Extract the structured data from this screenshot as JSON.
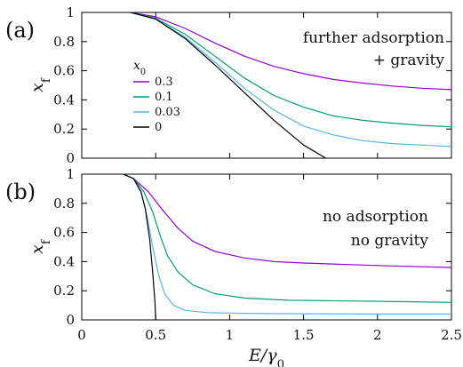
{
  "colors": {
    "x0_0.3": "#9400d3",
    "x0_0.1": "#009e73",
    "x0_0.03": "#56b4e9",
    "x0_0": "#000000"
  },
  "chart_data": [
    {
      "type": "line",
      "panel_label": "(a)",
      "annotation_lines": [
        "further adsorption",
        "+ gravity"
      ],
      "ylabel": "x_f",
      "xlim": [
        0,
        2.5
      ],
      "ylim": [
        0,
        1
      ],
      "xticks": [
        "0",
        "0.5",
        "1",
        "1.5",
        "2",
        "2.5"
      ],
      "yticks": [
        "0",
        "0.2",
        "0.4",
        "0.6",
        "0.8",
        "1"
      ],
      "show_x_tick_labels": false,
      "legend": {
        "title": "x_0",
        "placement": "middle-left"
      },
      "series": [
        {
          "name": "0.3",
          "color_key": "x0_0.3",
          "x": [
            0.33,
            0.5,
            0.7,
            0.9,
            1.1,
            1.3,
            1.5,
            1.7,
            1.9,
            2.1,
            2.3,
            2.5
          ],
          "y": [
            1.0,
            0.97,
            0.89,
            0.79,
            0.7,
            0.63,
            0.58,
            0.54,
            0.515,
            0.495,
            0.48,
            0.47
          ]
        },
        {
          "name": "0.1",
          "color_key": "x0_0.1",
          "x": [
            0.33,
            0.5,
            0.7,
            0.9,
            1.1,
            1.3,
            1.5,
            1.7,
            1.9,
            2.1,
            2.3,
            2.5
          ],
          "y": [
            1.0,
            0.96,
            0.85,
            0.7,
            0.55,
            0.43,
            0.35,
            0.29,
            0.26,
            0.24,
            0.225,
            0.215
          ]
        },
        {
          "name": "0.03",
          "color_key": "x0_0.03",
          "x": [
            0.33,
            0.5,
            0.7,
            0.9,
            1.1,
            1.3,
            1.5,
            1.7,
            1.9,
            2.1,
            2.3,
            2.5
          ],
          "y": [
            1.0,
            0.955,
            0.83,
            0.66,
            0.48,
            0.33,
            0.22,
            0.16,
            0.12,
            0.1,
            0.09,
            0.08
          ]
        },
        {
          "name": "0",
          "color_key": "x0_0",
          "x": [
            0.33,
            0.5,
            0.7,
            0.9,
            1.1,
            1.3,
            1.5,
            1.65
          ],
          "y": [
            1.0,
            0.955,
            0.82,
            0.64,
            0.45,
            0.26,
            0.09,
            0.0
          ]
        }
      ]
    },
    {
      "type": "line",
      "panel_label": "(b)",
      "annotation_lines": [
        "no adsorption",
        "no gravity"
      ],
      "ylabel": "x_f",
      "xlabel": "E/γ_0",
      "xlim": [
        0,
        2.5
      ],
      "ylim": [
        0,
        1
      ],
      "xticks": [
        "0",
        "0.5",
        "1",
        "1.5",
        "2",
        "2.5"
      ],
      "yticks": [
        "0",
        "0.2",
        "0.4",
        "0.6",
        "0.8",
        "1"
      ],
      "show_x_tick_labels": true,
      "series": [
        {
          "color_key": "x0_0.3",
          "x": [
            0.28,
            0.35,
            0.45,
            0.55,
            0.65,
            0.75,
            0.9,
            1.1,
            1.3,
            1.5,
            1.8,
            2.1,
            2.5
          ],
          "y": [
            1.0,
            0.97,
            0.88,
            0.75,
            0.63,
            0.54,
            0.47,
            0.425,
            0.4,
            0.39,
            0.38,
            0.37,
            0.36
          ]
        },
        {
          "color_key": "x0_0.1",
          "x": [
            0.28,
            0.35,
            0.42,
            0.48,
            0.53,
            0.58,
            0.65,
            0.75,
            0.9,
            1.1,
            1.4,
            1.8,
            2.2,
            2.5
          ],
          "y": [
            1.0,
            0.97,
            0.88,
            0.74,
            0.58,
            0.44,
            0.33,
            0.24,
            0.18,
            0.15,
            0.135,
            0.13,
            0.125,
            0.12
          ]
        },
        {
          "color_key": "x0_0.03",
          "x": [
            0.28,
            0.35,
            0.4,
            0.44,
            0.48,
            0.52,
            0.56,
            0.62,
            0.7,
            0.85,
            1.1,
            1.5,
            2.0,
            2.5
          ],
          "y": [
            1.0,
            0.97,
            0.88,
            0.72,
            0.5,
            0.31,
            0.18,
            0.1,
            0.065,
            0.05,
            0.045,
            0.042,
            0.04,
            0.04
          ]
        },
        {
          "color_key": "x0_0",
          "x": [
            0.28,
            0.35,
            0.4,
            0.43,
            0.46,
            0.48,
            0.495,
            0.5
          ],
          "y": [
            1.0,
            0.97,
            0.88,
            0.76,
            0.55,
            0.32,
            0.12,
            0.0
          ]
        }
      ]
    }
  ]
}
